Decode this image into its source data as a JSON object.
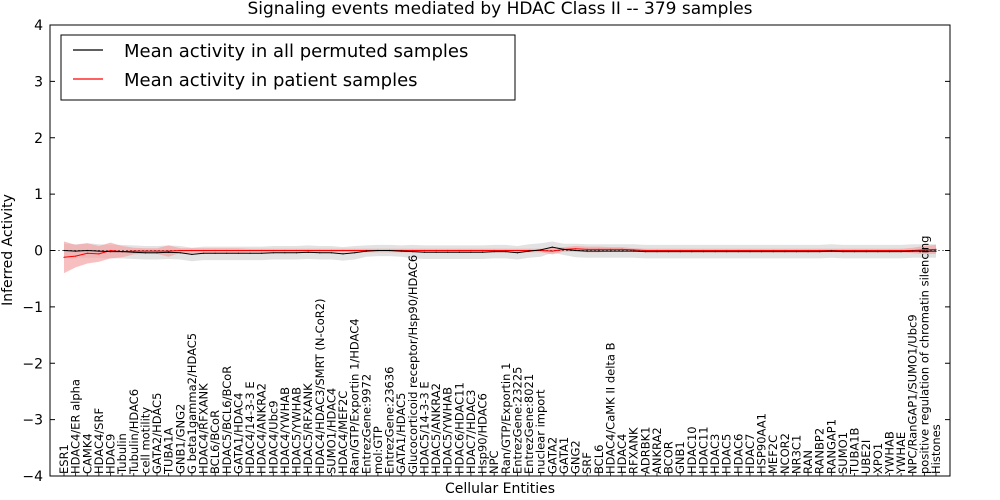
{
  "chart_data": {
    "type": "line",
    "title": "Signaling events mediated by HDAC Class II -- 379 samples",
    "xlabel": "Cellular Entities",
    "ylabel": "Inferred Activity",
    "ylim": [
      -4,
      4
    ],
    "yticks": [
      "4",
      "3",
      "2",
      "1",
      "0",
      "−1",
      "−2",
      "−3",
      "−4"
    ],
    "legend_position": "top-left",
    "categories": [
      "ESR1",
      "HDAC4/ER alpha",
      "CAMK4",
      "HDAC4/SRF",
      "HDAC9",
      "Tubulin",
      "Tubulin/HDAC6",
      "cell motility",
      "GATA2/HDAC5",
      "TUBA1A",
      "GNB1/GNG2",
      "G beta1gamma2/HDAC5",
      "HDAC4/RFXANK",
      "BCL6/BCoR",
      "HDAC5/BCL6/BCoR",
      "GATA1/HDAC4",
      "HDAC4/14-3-3 E",
      "HDAC4/ANKRA2",
      "HDAC4/Ubc9",
      "HDAC4/YWHAB",
      "HDAC5/YWHAB",
      "HDAC5/RFXANK",
      "HDAC4/HDAC3/SMRT (N-CoR2)",
      "SUMO1/HDAC4",
      "HDAC4/MEF2C",
      "Ran/GTP/Exportin 1/HDAC4",
      "EntrezGene:9972",
      "mol:GTP",
      "EntrezGene:23636",
      "GATA1/HDAC5",
      "Glucocorticoid receptor/Hsp90/HDAC6",
      "HDAC5/14-3-3 E",
      "HDAC5/ANKRA2",
      "HDAC5/YWHAB",
      "HDAC6/HDAC11",
      "HDAC7/HDAC3",
      "Hsp90/HDAC6",
      "NPC",
      "Ran/GTP/Exportin 1",
      "EntrezGene:23225",
      "EntrezGene:8021",
      "nuclear import",
      "GATA2",
      "GATA1",
      "GNG2",
      "SRF",
      "BCL6",
      "HDAC4/CaMK II delta B",
      "HDAC4",
      "RFXANK",
      "ADRBK1",
      "ANKRA2",
      "BCOR",
      "GNB1",
      "HDAC10",
      "HDAC11",
      "HDAC3",
      "HDAC5",
      "HDAC6",
      "HDAC7",
      "HSP90AA1",
      "MEF2C",
      "NCOR2",
      "NR3C1",
      "RAN",
      "RANBP2",
      "RANGAP1",
      "SUMO1",
      "TUBA1B",
      "UBE2I",
      "XPO1",
      "YWHAB",
      "YWHAE",
      "NPC/RanGAP1/SUMO1/Ubc9",
      "positive regulation of chromatin silencing",
      "Histones"
    ],
    "series": [
      {
        "name": "Mean activity in all permuted samples",
        "color": "#000000",
        "band_color": "#bfbfbf",
        "values": [
          0.0,
          -0.01,
          0.0,
          -0.01,
          -0.02,
          -0.02,
          -0.03,
          -0.04,
          -0.04,
          -0.03,
          -0.04,
          -0.07,
          -0.05,
          -0.05,
          -0.05,
          -0.05,
          -0.05,
          -0.05,
          -0.04,
          -0.04,
          -0.04,
          -0.03,
          -0.04,
          -0.04,
          -0.06,
          -0.04,
          -0.01,
          0.0,
          0.0,
          -0.01,
          -0.02,
          -0.03,
          -0.03,
          -0.03,
          -0.03,
          -0.03,
          -0.03,
          -0.02,
          -0.02,
          -0.04,
          -0.01,
          0.01,
          0.06,
          0.02,
          0.0,
          -0.01,
          -0.01,
          -0.01,
          -0.01,
          -0.01,
          -0.02,
          -0.02,
          -0.02,
          -0.02,
          -0.02,
          -0.02,
          -0.02,
          -0.02,
          -0.02,
          -0.02,
          -0.02,
          -0.02,
          -0.02,
          -0.02,
          -0.02,
          -0.02,
          -0.01,
          -0.02,
          -0.02,
          -0.02,
          -0.02,
          -0.02,
          -0.02,
          -0.01,
          -0.01,
          -0.01
        ],
        "band": [
          0.12,
          0.12,
          0.13,
          0.12,
          0.12,
          0.12,
          0.12,
          0.12,
          0.12,
          0.12,
          0.12,
          0.12,
          0.12,
          0.12,
          0.12,
          0.12,
          0.12,
          0.12,
          0.12,
          0.12,
          0.12,
          0.12,
          0.12,
          0.12,
          0.12,
          0.12,
          0.1,
          0.1,
          0.1,
          0.1,
          0.12,
          0.12,
          0.12,
          0.12,
          0.12,
          0.12,
          0.12,
          0.12,
          0.12,
          0.12,
          0.12,
          0.12,
          0.1,
          0.1,
          0.12,
          0.12,
          0.12,
          0.12,
          0.12,
          0.12,
          0.12,
          0.12,
          0.12,
          0.12,
          0.12,
          0.12,
          0.12,
          0.12,
          0.12,
          0.12,
          0.12,
          0.12,
          0.12,
          0.12,
          0.12,
          0.12,
          0.12,
          0.12,
          0.12,
          0.12,
          0.12,
          0.12,
          0.12,
          0.12,
          0.12,
          0.12
        ]
      },
      {
        "name": "Mean activity in patient samples",
        "color": "#ff0000",
        "band_color": "#f4a4a4",
        "values": [
          -0.12,
          -0.1,
          -0.05,
          -0.06,
          0.0,
          -0.02,
          -0.01,
          -0.01,
          -0.01,
          -0.01,
          0.0,
          0.0,
          0.0,
          0.0,
          0.0,
          0.0,
          0.0,
          0.0,
          0.0,
          0.0,
          0.0,
          0.0,
          0.0,
          0.0,
          0.0,
          0.0,
          0.0,
          0.0,
          0.0,
          0.0,
          0.0,
          0.0,
          0.0,
          0.0,
          0.0,
          0.0,
          0.0,
          0.0,
          0.0,
          0.0,
          0.0,
          0.0,
          -0.01,
          0.02,
          0.03,
          0.02,
          0.02,
          0.02,
          0.02,
          0.01,
          0.0,
          0.0,
          0.0,
          0.0,
          0.0,
          0.0,
          0.0,
          0.0,
          0.0,
          0.0,
          0.0,
          0.0,
          0.0,
          0.0,
          0.0,
          0.0,
          0.0,
          0.0,
          0.0,
          0.0,
          0.0,
          0.0,
          0.0,
          0.0,
          0.01,
          0.02
        ],
        "band": [
          0.28,
          0.2,
          0.18,
          0.14,
          0.14,
          0.1,
          0.06,
          0.05,
          0.05,
          0.1,
          0.04,
          0.04,
          0.04,
          0.04,
          0.04,
          0.04,
          0.03,
          0.03,
          0.03,
          0.03,
          0.03,
          0.03,
          0.03,
          0.03,
          0.03,
          0.03,
          0.03,
          0.03,
          0.03,
          0.03,
          0.03,
          0.03,
          0.03,
          0.03,
          0.03,
          0.03,
          0.03,
          0.03,
          0.03,
          0.03,
          0.03,
          0.03,
          0.06,
          0.04,
          0.05,
          0.05,
          0.05,
          0.04,
          0.04,
          0.03,
          0.03,
          0.03,
          0.03,
          0.03,
          0.03,
          0.03,
          0.03,
          0.03,
          0.03,
          0.03,
          0.03,
          0.03,
          0.03,
          0.03,
          0.03,
          0.03,
          0.03,
          0.03,
          0.03,
          0.03,
          0.03,
          0.03,
          0.03,
          0.05,
          0.07,
          0.08
        ]
      }
    ]
  }
}
